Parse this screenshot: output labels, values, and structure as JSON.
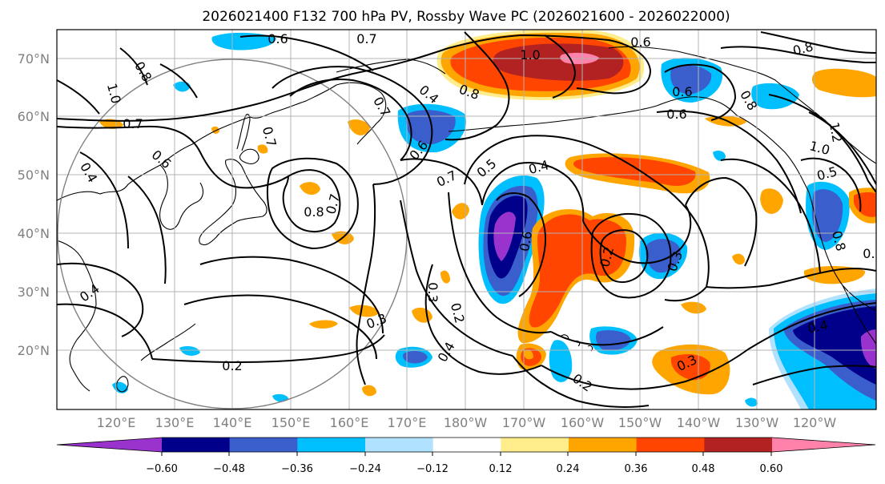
{
  "title": "2026021400 F132 700 hPa PV, Rossby Wave PC (2026021600 - 2026022000)",
  "map": {
    "lat_ticks": [
      "70°N",
      "60°N",
      "50°N",
      "40°N",
      "30°N",
      "20°N"
    ],
    "lon_ticks": [
      "120°E",
      "130°E",
      "140°E",
      "150°E",
      "160°E",
      "170°E",
      "180°W",
      "170°W",
      "160°W",
      "150°W",
      "140°W",
      "130°W",
      "120°W"
    ],
    "contour_labels": [
      {
        "text": "0.7"
      },
      {
        "text": "0.6"
      },
      {
        "text": "0.8"
      },
      {
        "text": "1.0"
      },
      {
        "text": "0.6"
      },
      {
        "text": "0.8"
      },
      {
        "text": "1.0"
      },
      {
        "text": "0.7"
      },
      {
        "text": "0.6"
      },
      {
        "text": "0.4"
      },
      {
        "text": "0.7"
      },
      {
        "text": "0.8"
      },
      {
        "text": "0.7"
      },
      {
        "text": "0.4"
      },
      {
        "text": "0.8"
      },
      {
        "text": "0.7"
      },
      {
        "text": "0.6"
      },
      {
        "text": "0.7"
      },
      {
        "text": "0.5"
      },
      {
        "text": "0.4"
      },
      {
        "text": "0.6"
      },
      {
        "text": "0.6"
      },
      {
        "text": "0.2"
      },
      {
        "text": "0.3"
      },
      {
        "text": "0.3"
      },
      {
        "text": "0.2"
      },
      {
        "text": "0.4"
      },
      {
        "text": "0.3"
      },
      {
        "text": "0.2"
      },
      {
        "text": "0.4"
      },
      {
        "text": "0.3"
      },
      {
        "text": "0.2"
      },
      {
        "text": "0.8"
      },
      {
        "text": "0.6"
      },
      {
        "text": "1.0"
      },
      {
        "text": "1.2"
      },
      {
        "text": "0.5"
      },
      {
        "text": "0.8"
      },
      {
        "text": "0.4"
      },
      {
        "text": "0.2"
      }
    ]
  },
  "colorbar": {
    "tick_labels": [
      "−0.60",
      "−0.48",
      "−0.36",
      "−0.24",
      "−0.12",
      "0.12",
      "0.24",
      "0.36",
      "0.48",
      "0.60"
    ],
    "colors": [
      "#9a32cd",
      "#00008b",
      "#3a5fcd",
      "#00bfff",
      "#b0e2ff",
      "#ffffff",
      "#ffec8b",
      "#ffa500",
      "#ff4500",
      "#b22222",
      "#ff82ab"
    ]
  },
  "colors": {
    "purple": "#9a32cd",
    "navy": "#00008b",
    "blue": "#3a5fcd",
    "sky": "#00bfff",
    "lightblue": "#b0e2ff",
    "yellow": "#ffec8b",
    "orange": "#ffa500",
    "redorange": "#ff4500",
    "firebrick": "#b22222",
    "pink": "#ff82ab"
  }
}
